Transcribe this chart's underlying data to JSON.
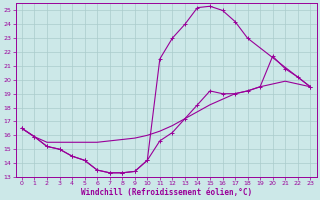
{
  "xlabel": "Windchill (Refroidissement éolien,°C)",
  "bg_color": "#cce8e8",
  "grid_color": "#aacccc",
  "line_color": "#990099",
  "xlim": [
    -0.5,
    23.5
  ],
  "ylim": [
    13,
    25.5
  ],
  "yticks": [
    13,
    14,
    15,
    16,
    17,
    18,
    19,
    20,
    21,
    22,
    23,
    24,
    25
  ],
  "xticks": [
    0,
    1,
    2,
    3,
    4,
    5,
    6,
    7,
    8,
    9,
    10,
    11,
    12,
    13,
    14,
    15,
    16,
    17,
    18,
    19,
    20,
    21,
    22,
    23
  ],
  "line1_x": [
    0,
    1,
    2,
    3,
    4,
    5,
    6,
    7,
    8,
    9,
    10,
    11,
    12,
    13,
    14,
    15,
    16,
    17,
    18,
    23
  ],
  "line1_y": [
    16.5,
    15.9,
    15.2,
    15.0,
    14.5,
    14.2,
    13.5,
    13.3,
    13.3,
    13.4,
    14.2,
    21.5,
    23.0,
    24.0,
    25.2,
    25.3,
    25.0,
    24.2,
    23.0,
    19.5
  ],
  "line2_x": [
    0,
    1,
    2,
    3,
    4,
    5,
    6,
    7,
    8,
    9,
    10,
    11,
    12,
    13,
    14,
    15,
    16,
    17,
    18,
    19,
    20,
    21,
    22,
    23
  ],
  "line2_y": [
    16.5,
    15.9,
    15.2,
    15.0,
    14.5,
    14.2,
    13.5,
    13.3,
    13.3,
    13.4,
    14.2,
    15.6,
    16.2,
    17.2,
    18.2,
    19.2,
    19.0,
    19.0,
    19.2,
    19.5,
    21.7,
    20.8,
    20.2,
    19.5
  ],
  "line3_x": [
    0,
    1,
    2,
    3,
    4,
    5,
    6,
    7,
    8,
    9,
    10,
    11,
    12,
    13,
    14,
    15,
    16,
    17,
    18,
    19,
    20,
    21,
    22,
    23
  ],
  "line3_y": [
    16.5,
    15.9,
    15.5,
    15.5,
    15.5,
    15.5,
    15.5,
    15.6,
    15.7,
    15.8,
    16.0,
    16.3,
    16.7,
    17.2,
    17.7,
    18.2,
    18.6,
    19.0,
    19.2,
    19.5,
    19.7,
    19.9,
    19.7,
    19.5
  ]
}
